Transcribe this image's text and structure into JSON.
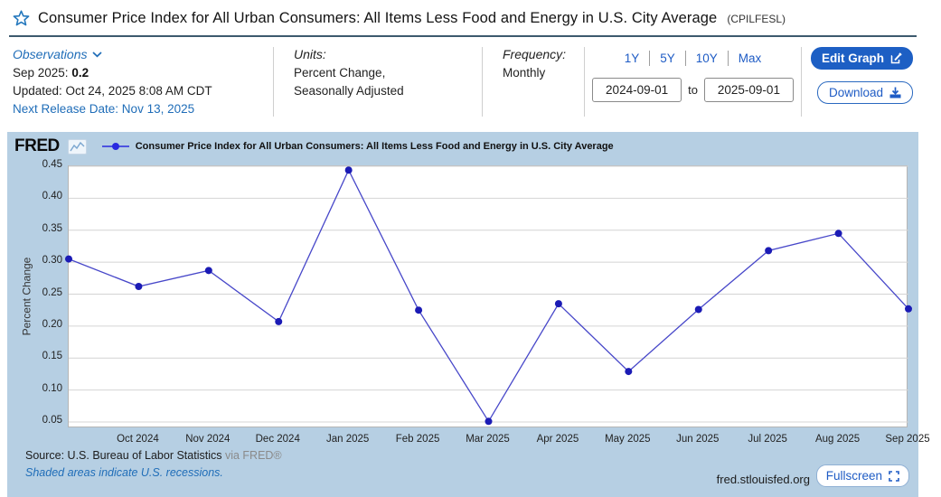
{
  "header": {
    "title": "Consumer Price Index for All Urban Consumers: All Items Less Food and Energy in U.S. City Average",
    "series_id": "(CPILFESL)"
  },
  "meta": {
    "observations": {
      "label": "Observations",
      "latest_label": "Sep 2025:",
      "latest_value": "0.2",
      "updated": "Updated: Oct 24, 2025 8:08 AM CDT",
      "next_release": "Next Release Date: Nov 13, 2025"
    },
    "units": {
      "label": "Units:",
      "line1": "Percent Change,",
      "line2": "Seasonally Adjusted"
    },
    "frequency": {
      "label": "Frequency:",
      "value": "Monthly"
    },
    "ranges": [
      "1Y",
      "5Y",
      "10Y",
      "Max"
    ],
    "date_range": {
      "from": "2024-09-01",
      "to_label": "to",
      "to": "2025-09-01"
    },
    "actions": {
      "edit_graph": "Edit Graph",
      "download": "Download"
    }
  },
  "chart": {
    "logo": "FRED",
    "legend": "Consumer Price Index for All Urban Consumers: All Items Less Food and Energy in U.S. City Average"
  },
  "chart_data": {
    "type": "line",
    "title": "Consumer Price Index for All Urban Consumers: All Items Less Food and Energy in U.S. City Average",
    "x": [
      "Sep 2024",
      "Oct 2024",
      "Nov 2024",
      "Dec 2024",
      "Jan 2025",
      "Feb 2025",
      "Mar 2025",
      "Apr 2025",
      "May 2025",
      "Jun 2025",
      "Jul 2025",
      "Aug 2025",
      "Sep 2025"
    ],
    "values": [
      0.305,
      0.262,
      0.287,
      0.207,
      0.444,
      0.225,
      0.051,
      0.235,
      0.129,
      0.226,
      0.318,
      0.345,
      0.227
    ],
    "ylabel": "Percent Change",
    "ylim": [
      0.05,
      0.45
    ],
    "yticks": [
      0.05,
      0.1,
      0.15,
      0.2,
      0.25,
      0.3,
      0.35,
      0.4,
      0.45
    ],
    "x_tick_labels": [
      "Oct 2024",
      "Nov 2024",
      "Dec 2024",
      "Jan 2025",
      "Feb 2025",
      "Mar 2025",
      "Apr 2025",
      "May 2025",
      "Jun 2025",
      "Jul 2025",
      "Aug 2025",
      "Sep 2025"
    ],
    "grid": true,
    "legend_position": "top"
  },
  "footer": {
    "source": "Source: U.S. Bureau of Labor Statistics",
    "via": "via FRED®",
    "note": "Shaded areas indicate U.S. recessions.",
    "site": "fred.stlouisfed.org",
    "fullscreen": "Fullscreen"
  },
  "colors": {
    "link": "#1f6db8",
    "button_blue": "#1d5fc4",
    "line": "#4747c9",
    "marker": "#1b1bb5",
    "legend_marker": "#2a2ae0",
    "panel_bg": "#b6cfe3",
    "gridline": "#d4d4d4"
  }
}
